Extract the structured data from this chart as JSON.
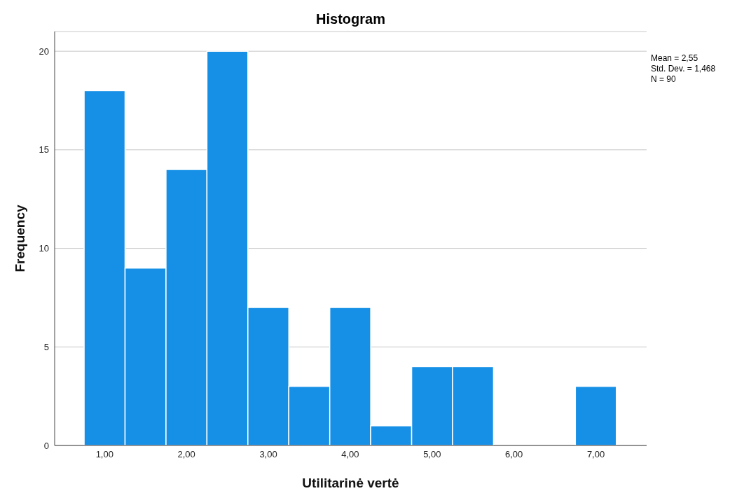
{
  "chart_data": {
    "type": "histogram",
    "title": "Histogram",
    "xlabel": "Utilitarinė vertė",
    "ylabel": "Frequency",
    "bins": [
      0.75,
      1.25,
      1.75,
      2.25,
      2.75,
      3.25,
      3.75,
      4.25,
      4.75,
      5.25,
      5.75,
      6.25,
      6.75,
      7.25
    ],
    "values": [
      18,
      9,
      14,
      20,
      7,
      3,
      7,
      1,
      4,
      4,
      0,
      0,
      3
    ],
    "color": "#1590e6",
    "xlim": [
      0.39,
      7.62
    ],
    "xticks": [
      {
        "value": 1,
        "label": "1,00"
      },
      {
        "value": 2,
        "label": "2,00"
      },
      {
        "value": 3,
        "label": "3,00"
      },
      {
        "value": 4,
        "label": "4,00"
      },
      {
        "value": 5,
        "label": "5,00"
      },
      {
        "value": 6,
        "label": "6,00"
      },
      {
        "value": 7,
        "label": "7,00"
      }
    ],
    "ylim": [
      0,
      21
    ],
    "yticks": [
      0,
      5,
      10,
      15,
      20
    ],
    "grid": "y",
    "annotations": [
      "Mean = 2,55",
      "Std. Dev. = 1,468",
      "N = 90"
    ]
  }
}
